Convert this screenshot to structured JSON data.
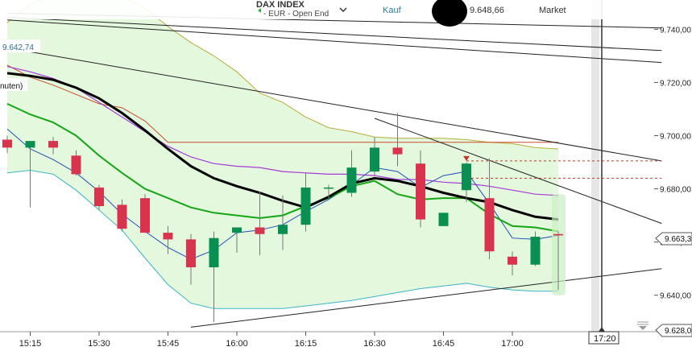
{
  "header": {
    "instrument": "DAX INDEX",
    "subtitle": "- EUR - Open End",
    "side_label": "Kauf",
    "price": "9.648,66",
    "order_type": "Market"
  },
  "chart_data": {
    "type": "candlestick",
    "legend_fragment": "nuten)",
    "price_badge": "9.642,74",
    "current_price_label": "9.663,3",
    "low_label": "9.628,0",
    "time_label": "17:20",
    "y_ticks": [
      "9.740,00",
      "9.720,00",
      "9.700,00",
      "9.680,00",
      "9.660,00",
      "9.640,00"
    ],
    "y_tick_values": [
      9740,
      9720,
      9700,
      9680,
      9660,
      9640
    ],
    "ylim": [
      9626.3,
      9751
    ],
    "x_ticks": [
      "15:15",
      "15:30",
      "15:45",
      "16:00",
      "16:15",
      "16:30",
      "16:45",
      "17:00"
    ],
    "x_tick_index": [
      1,
      4,
      7,
      10,
      13,
      16,
      19,
      22
    ],
    "interval_minutes": 5,
    "colors": {
      "up": "#0a8f52",
      "down": "#d8344e",
      "band": "#dff7d8",
      "ma_black": "#000000",
      "ma_green": "#14a614",
      "ma_purple": "#a53ad8",
      "ma_blue": "#1f4fb8",
      "bb_upper": "#b6ad38",
      "bb_lower": "#3bb3c8",
      "resistance": "#c84a2a"
    },
    "candles": [
      {
        "time": "15:10",
        "o": 9698.5,
        "h": 9700.0,
        "l": 9693.5,
        "c": 9695.5
      },
      {
        "time": "15:15",
        "o": 9695.5,
        "h": 9697.5,
        "l": 9673.0,
        "c": 9698.0
      },
      {
        "time": "15:20",
        "o": 9698.0,
        "h": 9699.5,
        "l": 9693.0,
        "c": 9695.5
      },
      {
        "time": "15:25",
        "o": 9692.5,
        "h": 9694.5,
        "l": 9685.0,
        "c": 9685.5
      },
      {
        "time": "15:30",
        "o": 9680.5,
        "h": 9681.5,
        "l": 9672.0,
        "c": 9673.5
      },
      {
        "time": "15:35",
        "o": 9674.0,
        "h": 9676.0,
        "l": 9664.0,
        "c": 9665.0
      },
      {
        "time": "15:40",
        "o": 9676.5,
        "h": 9678.0,
        "l": 9664.0,
        "c": 9663.5
      },
      {
        "time": "15:45",
        "o": 9663.5,
        "h": 9666.0,
        "l": 9655.5,
        "c": 9661.0
      },
      {
        "time": "15:50",
        "o": 9661.0,
        "h": 9663.0,
        "l": 9644.0,
        "c": 9650.5
      },
      {
        "time": "15:55",
        "o": 9650.5,
        "h": 9664.0,
        "l": 9630.0,
        "c": 9661.5
      },
      {
        "time": "16:00",
        "o": 9663.5,
        "h": 9665.5,
        "l": 9656.0,
        "c": 9665.5
      },
      {
        "time": "16:05",
        "o": 9665.5,
        "h": 9679.0,
        "l": 9655.0,
        "c": 9663.0
      },
      {
        "time": "16:10",
        "o": 9663.0,
        "h": 9677.5,
        "l": 9657.0,
        "c": 9666.5
      },
      {
        "time": "16:15",
        "o": 9666.5,
        "h": 9686.0,
        "l": 9664.0,
        "c": 9680.5
      },
      {
        "time": "16:20",
        "o": 9680.5,
        "h": 9681.5,
        "l": 9676.5,
        "c": 9680.5
      },
      {
        "time": "16:25",
        "o": 9678.5,
        "h": 9694.5,
        "l": 9677.0,
        "c": 9688.0
      },
      {
        "time": "16:30",
        "o": 9686.5,
        "h": 9699.5,
        "l": 9685.0,
        "c": 9695.5
      },
      {
        "time": "16:35",
        "o": 9695.5,
        "h": 9708.5,
        "l": 9688.5,
        "c": 9693.0
      },
      {
        "time": "16:40",
        "o": 9689.5,
        "h": 9694.5,
        "l": 9665.5,
        "c": 9668.5
      },
      {
        "time": "16:45",
        "o": 9666.0,
        "h": 9671.0,
        "l": 9666.0,
        "c": 9671.0
      },
      {
        "time": "16:50",
        "o": 9679.5,
        "h": 9690.0,
        "l": 9675.0,
        "c": 9689.5
      },
      {
        "time": "16:55",
        "o": 9676.5,
        "h": 9691.5,
        "l": 9653.5,
        "c": 9656.5
      },
      {
        "time": "17:00",
        "o": 9654.5,
        "h": 9656.5,
        "l": 9647.5,
        "c": 9651.5
      },
      {
        "time": "17:05",
        "o": 9651.5,
        "h": 9664.0,
        "l": 9651.0,
        "c": 9662.0
      },
      {
        "time": "17:10",
        "o": 9663.0,
        "h": 9664.0,
        "l": 9642.0,
        "c": 9662.5
      }
    ],
    "ma_black": [
      9723.5,
      9722.5,
      9721.0,
      9718.0,
      9714.0,
      9708.5,
      9702.0,
      9695.0,
      9688.5,
      9684.0,
      9681.0,
      9678.5,
      9675.5,
      9673.0,
      9677.0,
      9682.0,
      9684.0,
      9683.0,
      9681.0,
      9678.5,
      9676.5,
      9675.0,
      9672.0,
      9669.5,
      9668.5
    ],
    "ma_purple": [
      9726.0,
      9724.0,
      9721.5,
      9718.0,
      9712.5,
      9707.0,
      9701.5,
      9696.0,
      9692.0,
      9689.5,
      9688.5,
      9688.0,
      9686.5,
      9686.0,
      9685.5,
      9685.5,
      9685.0,
      9683.5,
      9683.5,
      9682.5,
      9682.0,
      9681.0,
      9679.5,
      9678.0,
      9677.5
    ],
    "ma_green": [
      9712.0,
      9708.0,
      9705.0,
      9700.0,
      9692.5,
      9686.0,
      9680.0,
      9676.5,
      9673.0,
      9671.0,
      9670.0,
      9669.0,
      9670.0,
      9673.5,
      9676.5,
      9681.0,
      9683.0,
      9678.0,
      9676.0,
      9676.5,
      9676.5,
      9670.5,
      9666.0,
      9665.5,
      9664.0
    ],
    "ma_blue": [
      9702.5,
      9695.0,
      9691.0,
      9686.0,
      9679.0,
      9670.5,
      9664.0,
      9658.0,
      9653.5,
      9657.0,
      9663.5,
      9664.5,
      9666.5,
      9671.5,
      9676.0,
      9681.5,
      9688.0,
      9686.5,
      9680.5,
      9685.0,
      9686.5,
      9674.5,
      9661.5,
      9661.0,
      9662.5
    ],
    "bb_upper": [
      9742.5,
      9749.5,
      9752.5,
      9753.5,
      9753.5,
      9752.5,
      9748.0,
      9741.0,
      9735.0,
      9730.0,
      9724.0,
      9716.0,
      9712.5,
      9707.0,
      9703.0,
      9701.5,
      9699.5,
      9699.0,
      9699.0,
      9699.0,
      9698.5,
      9697.5,
      9697.0,
      9695.5,
      9695.0
    ],
    "bb_lower": [
      9686.0,
      9687.0,
      9685.5,
      9679.5,
      9672.0,
      9664.5,
      9654.0,
      9644.0,
      9637.0,
      9635.0,
      9635.0,
      9635.0,
      9635.0,
      9636.0,
      9637.0,
      9638.0,
      9639.5,
      9641.0,
      9642.5,
      9643.5,
      9644.5,
      9643.0,
      9642.0,
      9641.5,
      9641.5
    ],
    "resistance_line": [
      9726.5,
      9722.0,
      9719.0,
      9715.5,
      9712.0,
      9710.5,
      9705.5,
      9697.5,
      9697.5,
      9697.5,
      9697.5,
      9697.5,
      9697.5,
      9697.5,
      9697.5,
      9697.5,
      9697.5,
      9697.5,
      9697.5,
      9697.5,
      9697.5,
      9697.5,
      9697.5,
      9697.5,
      9697.5
    ],
    "trend_lines": [
      {
        "from": {
          "i": 0,
          "y": 9746.0
        },
        "to": {
          "i": 28.5,
          "y": 9740.5
        }
      },
      {
        "from": {
          "i": 0,
          "y": 9744.5
        },
        "to": {
          "i": 28.5,
          "y": 9732.0
        }
      },
      {
        "from": {
          "i": 0,
          "y": 9743.5
        },
        "to": {
          "i": 28.5,
          "y": 9727.5
        }
      },
      {
        "from": {
          "i": 0,
          "y": 9733.0
        },
        "to": {
          "i": 28.5,
          "y": 9690.5
        }
      },
      {
        "from": {
          "i": 16,
          "y": 9706.5
        },
        "to": {
          "i": 28.5,
          "y": 9667.0
        }
      },
      {
        "from": {
          "i": 8,
          "y": 9628.0
        },
        "to": {
          "i": 28.5,
          "y": 9650.0
        }
      }
    ],
    "dashed_levels": [
      9690.5,
      9684.0
    ]
  }
}
